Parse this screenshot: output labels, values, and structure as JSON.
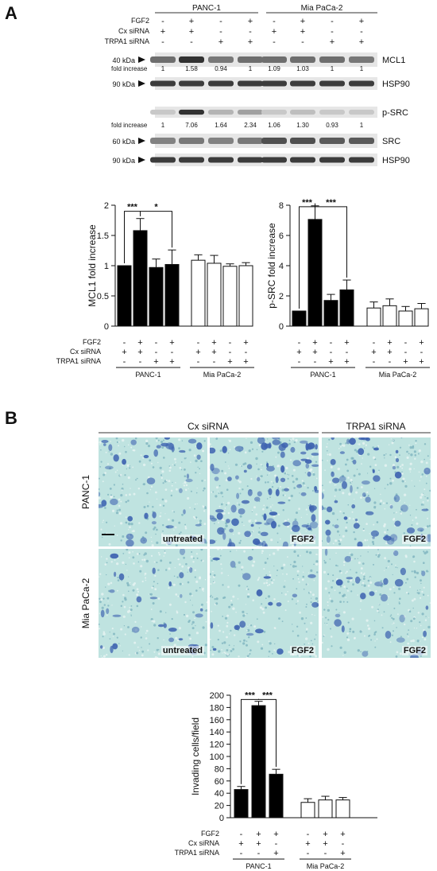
{
  "panel_a_label": "A",
  "panel_b_label": "B",
  "blots": {
    "groups": [
      "PANC-1",
      "Mia PaCa-2"
    ],
    "condition_rows": [
      {
        "label": "FGF2",
        "signs": [
          "-",
          "+",
          "-",
          "+",
          "-",
          "+",
          "-",
          "+"
        ]
      },
      {
        "label": "Cx siRNA",
        "signs": [
          "+",
          "+",
          "-",
          "-",
          "+",
          "+",
          "-",
          "-"
        ]
      },
      {
        "label": "TRPA1 siRNA",
        "signs": [
          "-",
          "-",
          "+",
          "+",
          "-",
          "-",
          "+",
          "+"
        ]
      }
    ],
    "fold_increase_label": "fold increase",
    "mcl1_fold": [
      "1",
      "1.58",
      "0.94",
      "1",
      "1.09",
      "1.03",
      "1",
      "1"
    ],
    "psrc_fold": [
      "1",
      "7.06",
      "1.64",
      "2.34",
      "1.06",
      "1.30",
      "0.93",
      "1"
    ],
    "bands": [
      {
        "name": "MCL1",
        "marker": "40 kDa"
      },
      {
        "name": "HSP90",
        "marker": "90 kDa"
      },
      {
        "name": "p-SRC",
        "marker": ""
      },
      {
        "name": "SRC",
        "marker": "60 kDa"
      },
      {
        "name": "HSP90",
        "marker": "90 kDa"
      }
    ]
  },
  "chart_data": [
    {
      "type": "bar",
      "ylabel": "MCL1 fold increase",
      "ylim": [
        0,
        2
      ],
      "yticks": [
        "0",
        "0.5",
        "1",
        "1.5",
        "2"
      ],
      "values": [
        1,
        1.58,
        0.97,
        1.02,
        1.09,
        1.04,
        0.99,
        1.0
      ],
      "errors": [
        0,
        0.2,
        0.14,
        0.24,
        0.09,
        0.13,
        0.04,
        0.05
      ],
      "colors": [
        "#000000",
        "#000000",
        "#000000",
        "#000000",
        "#ffffff",
        "#ffffff",
        "#ffffff",
        "#ffffff"
      ],
      "significance": [
        "***",
        "*"
      ],
      "condition_rows": [
        {
          "label": "FGF2",
          "signs": [
            "-",
            "+",
            "-",
            "+",
            "-",
            "+",
            "-",
            "+"
          ]
        },
        {
          "label": "Cx siRNA",
          "signs": [
            "+",
            "+",
            "-",
            "-",
            "+",
            "+",
            "-",
            "-"
          ]
        },
        {
          "label": "TRPA1 siRNA",
          "signs": [
            "-",
            "-",
            "+",
            "+",
            "-",
            "-",
            "+",
            "+"
          ]
        }
      ],
      "groups": [
        "PANC-1",
        "Mia PaCa-2"
      ]
    },
    {
      "type": "bar",
      "ylabel": "p-SRC fold increase",
      "ylim": [
        0,
        8
      ],
      "yticks": [
        "0",
        "2",
        "4",
        "6",
        "8"
      ],
      "values": [
        1,
        7.06,
        1.7,
        2.4,
        1.2,
        1.35,
        1.0,
        1.15
      ],
      "errors": [
        0,
        0.9,
        0.4,
        0.65,
        0.4,
        0.45,
        0.3,
        0.35
      ],
      "colors": [
        "#000000",
        "#000000",
        "#000000",
        "#000000",
        "#ffffff",
        "#ffffff",
        "#ffffff",
        "#ffffff"
      ],
      "significance": [
        "***",
        "***"
      ],
      "condition_rows": [
        {
          "label": "",
          "signs": [
            "-",
            "+",
            "-",
            "+",
            "-",
            "+",
            "-",
            "+"
          ]
        },
        {
          "label": "",
          "signs": [
            "+",
            "+",
            "-",
            "-",
            "+",
            "+",
            "-",
            "-"
          ]
        },
        {
          "label": "",
          "signs": [
            "-",
            "-",
            "+",
            "+",
            "-",
            "-",
            "+",
            "+"
          ]
        }
      ],
      "groups": [
        "PANC-1",
        "Mia PaCa-2"
      ]
    },
    {
      "type": "bar",
      "ylabel": "Invading cells/field",
      "ylim": [
        0,
        200
      ],
      "yticks": [
        "0",
        "20",
        "40",
        "60",
        "80",
        "100",
        "120",
        "140",
        "160",
        "180",
        "200"
      ],
      "values": [
        46,
        183,
        71,
        25,
        29,
        29
      ],
      "errors": [
        5,
        7,
        8,
        6,
        6,
        4
      ],
      "colors": [
        "#000000",
        "#000000",
        "#000000",
        "#ffffff",
        "#ffffff",
        "#ffffff"
      ],
      "significance": [
        "***",
        "***"
      ],
      "condition_rows": [
        {
          "label": "FGF2",
          "signs": [
            "-",
            "+",
            "+",
            "-",
            "+",
            "+"
          ]
        },
        {
          "label": "Cx siRNA",
          "signs": [
            "+",
            "+",
            "-",
            "+",
            "+",
            "-"
          ]
        },
        {
          "label": "TRPA1 siRNA",
          "signs": [
            "-",
            "-",
            "+",
            "-",
            "-",
            "+"
          ]
        }
      ],
      "groups": [
        "PANC-1",
        "Mia PaCa-2"
      ]
    }
  ],
  "micrographs": {
    "column_headers": [
      "Cx siRNA",
      "TRPA1 siRNA"
    ],
    "row_labels": [
      "PANC-1",
      "Mia PaCa-2"
    ],
    "tiles": [
      {
        "label": "untreated",
        "row": 0,
        "col": 0
      },
      {
        "label": "FGF2",
        "row": 0,
        "col": 1
      },
      {
        "label": "FGF2",
        "row": 0,
        "col": 2
      },
      {
        "label": "untreated",
        "row": 1,
        "col": 0
      },
      {
        "label": "FGF2",
        "row": 1,
        "col": 1
      },
      {
        "label": "FGF2",
        "row": 1,
        "col": 2
      }
    ],
    "colors": {
      "background": "#bfe3e0",
      "cell": "#3e63b0",
      "pale": "#cfd9e6"
    }
  }
}
